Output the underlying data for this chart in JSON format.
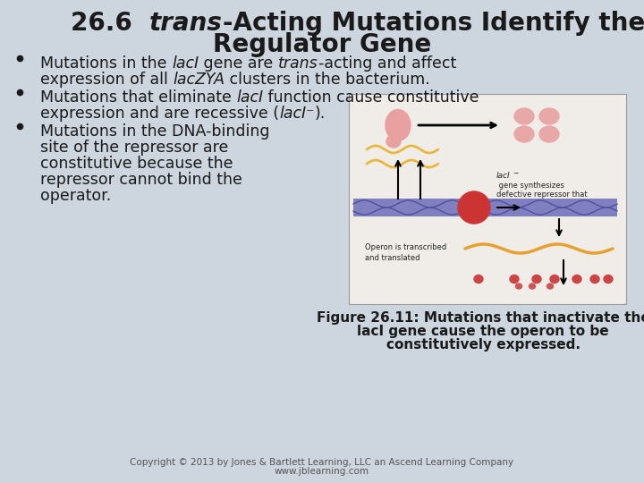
{
  "bg_color": "#cdd5de",
  "title_fontsize": 20,
  "bullet_fontsize": 12.5,
  "caption_fontsize": 11,
  "copyright_fontsize": 7.5,
  "text_color": "#1a1a1a",
  "caption_color": "#111111",
  "copyright_color": "#555555",
  "fig_caption_line1": "Figure 26.11: Mutations that inactivate the",
  "fig_caption_line2": "lacI gene cause the operon to be",
  "fig_caption_line3": "constitutively expressed.",
  "copyright": "Copyright © 2013 by Jones & Bartlett Learning, LLC an Ascend Learning Company",
  "website": "www.jblearning.com",
  "bullet1_line1_segs": [
    {
      "text": "Mutations in the ",
      "style": "normal"
    },
    {
      "text": "lacI",
      "style": "italic"
    },
    {
      "text": " gene are ",
      "style": "normal"
    },
    {
      "text": "trans",
      "style": "italic"
    },
    {
      "text": "-acting and affect",
      "style": "normal"
    }
  ],
  "bullet1_line2_segs": [
    {
      "text": "expression of all ",
      "style": "normal"
    },
    {
      "text": "lacZYA",
      "style": "italic"
    },
    {
      "text": " clusters in the bacterium.",
      "style": "normal"
    }
  ],
  "bullet2_line1_segs": [
    {
      "text": "Mutations that eliminate ",
      "style": "normal"
    },
    {
      "text": "lacI",
      "style": "italic"
    },
    {
      "text": " function cause constitutive",
      "style": "normal"
    }
  ],
  "bullet2_line2_segs": [
    {
      "text": "expression and are recessive (",
      "style": "normal"
    },
    {
      "text": "lacI⁻",
      "style": "italic"
    },
    {
      "text": ").",
      "style": "normal"
    }
  ],
  "bullet3_lines": [
    "Mutations in the DNA-binding",
    "site of the repressor are",
    "constitutive because the",
    "repressor cannot bind the",
    "operator."
  ]
}
